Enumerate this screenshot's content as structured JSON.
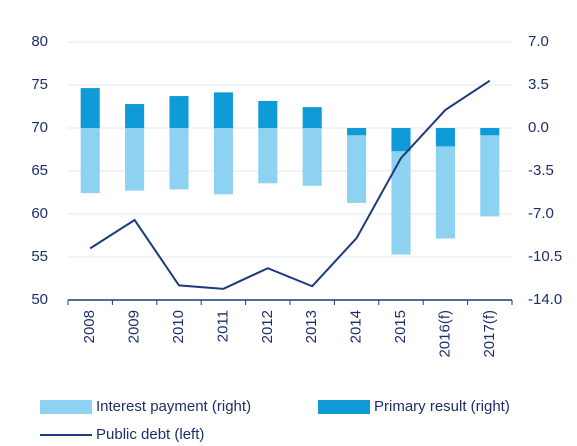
{
  "chart_data": {
    "type": "bar",
    "categories": [
      "2008",
      "2009",
      "2010",
      "2011",
      "2012",
      "2013",
      "2014",
      "2015",
      "2016(f)",
      "2017(f)"
    ],
    "series": [
      {
        "name": "Interest payment (right)",
        "type": "bar",
        "axis": "y2",
        "color": "#8dd2f0",
        "values": [
          -5.3,
          -5.1,
          -5.0,
          -5.4,
          -4.5,
          -4.7,
          -5.5,
          -8.4,
          -7.5,
          -6.6
        ]
      },
      {
        "name": "Primary result (right)",
        "type": "bar",
        "axis": "y2",
        "color": "#0f9ad8",
        "values": [
          3.25,
          1.95,
          2.6,
          2.9,
          2.2,
          1.7,
          -0.6,
          -1.9,
          -1.5,
          -0.6
        ]
      },
      {
        "name": "Public debt (left)",
        "type": "line",
        "color": "#1c3a7c",
        "values": [
          56.0,
          59.3,
          51.7,
          51.3,
          53.7,
          51.6,
          57.2,
          66.5,
          72.1,
          75.5
        ]
      }
    ],
    "ylim": [
      50,
      80
    ],
    "yticks": [
      50,
      55,
      60,
      65,
      70,
      75,
      80
    ],
    "y2lim": [
      -14,
      7
    ],
    "y2ticks": [
      {
        "value": -14,
        "label": "-14.0"
      },
      -10.5,
      {
        "value": -7,
        "label": "-7.0"
      },
      -3.5,
      {
        "value": 0,
        "label": "0.0"
      },
      3.5,
      {
        "value": 7,
        "label": "7.0"
      }
    ],
    "grid": true,
    "legend": "bottom"
  }
}
